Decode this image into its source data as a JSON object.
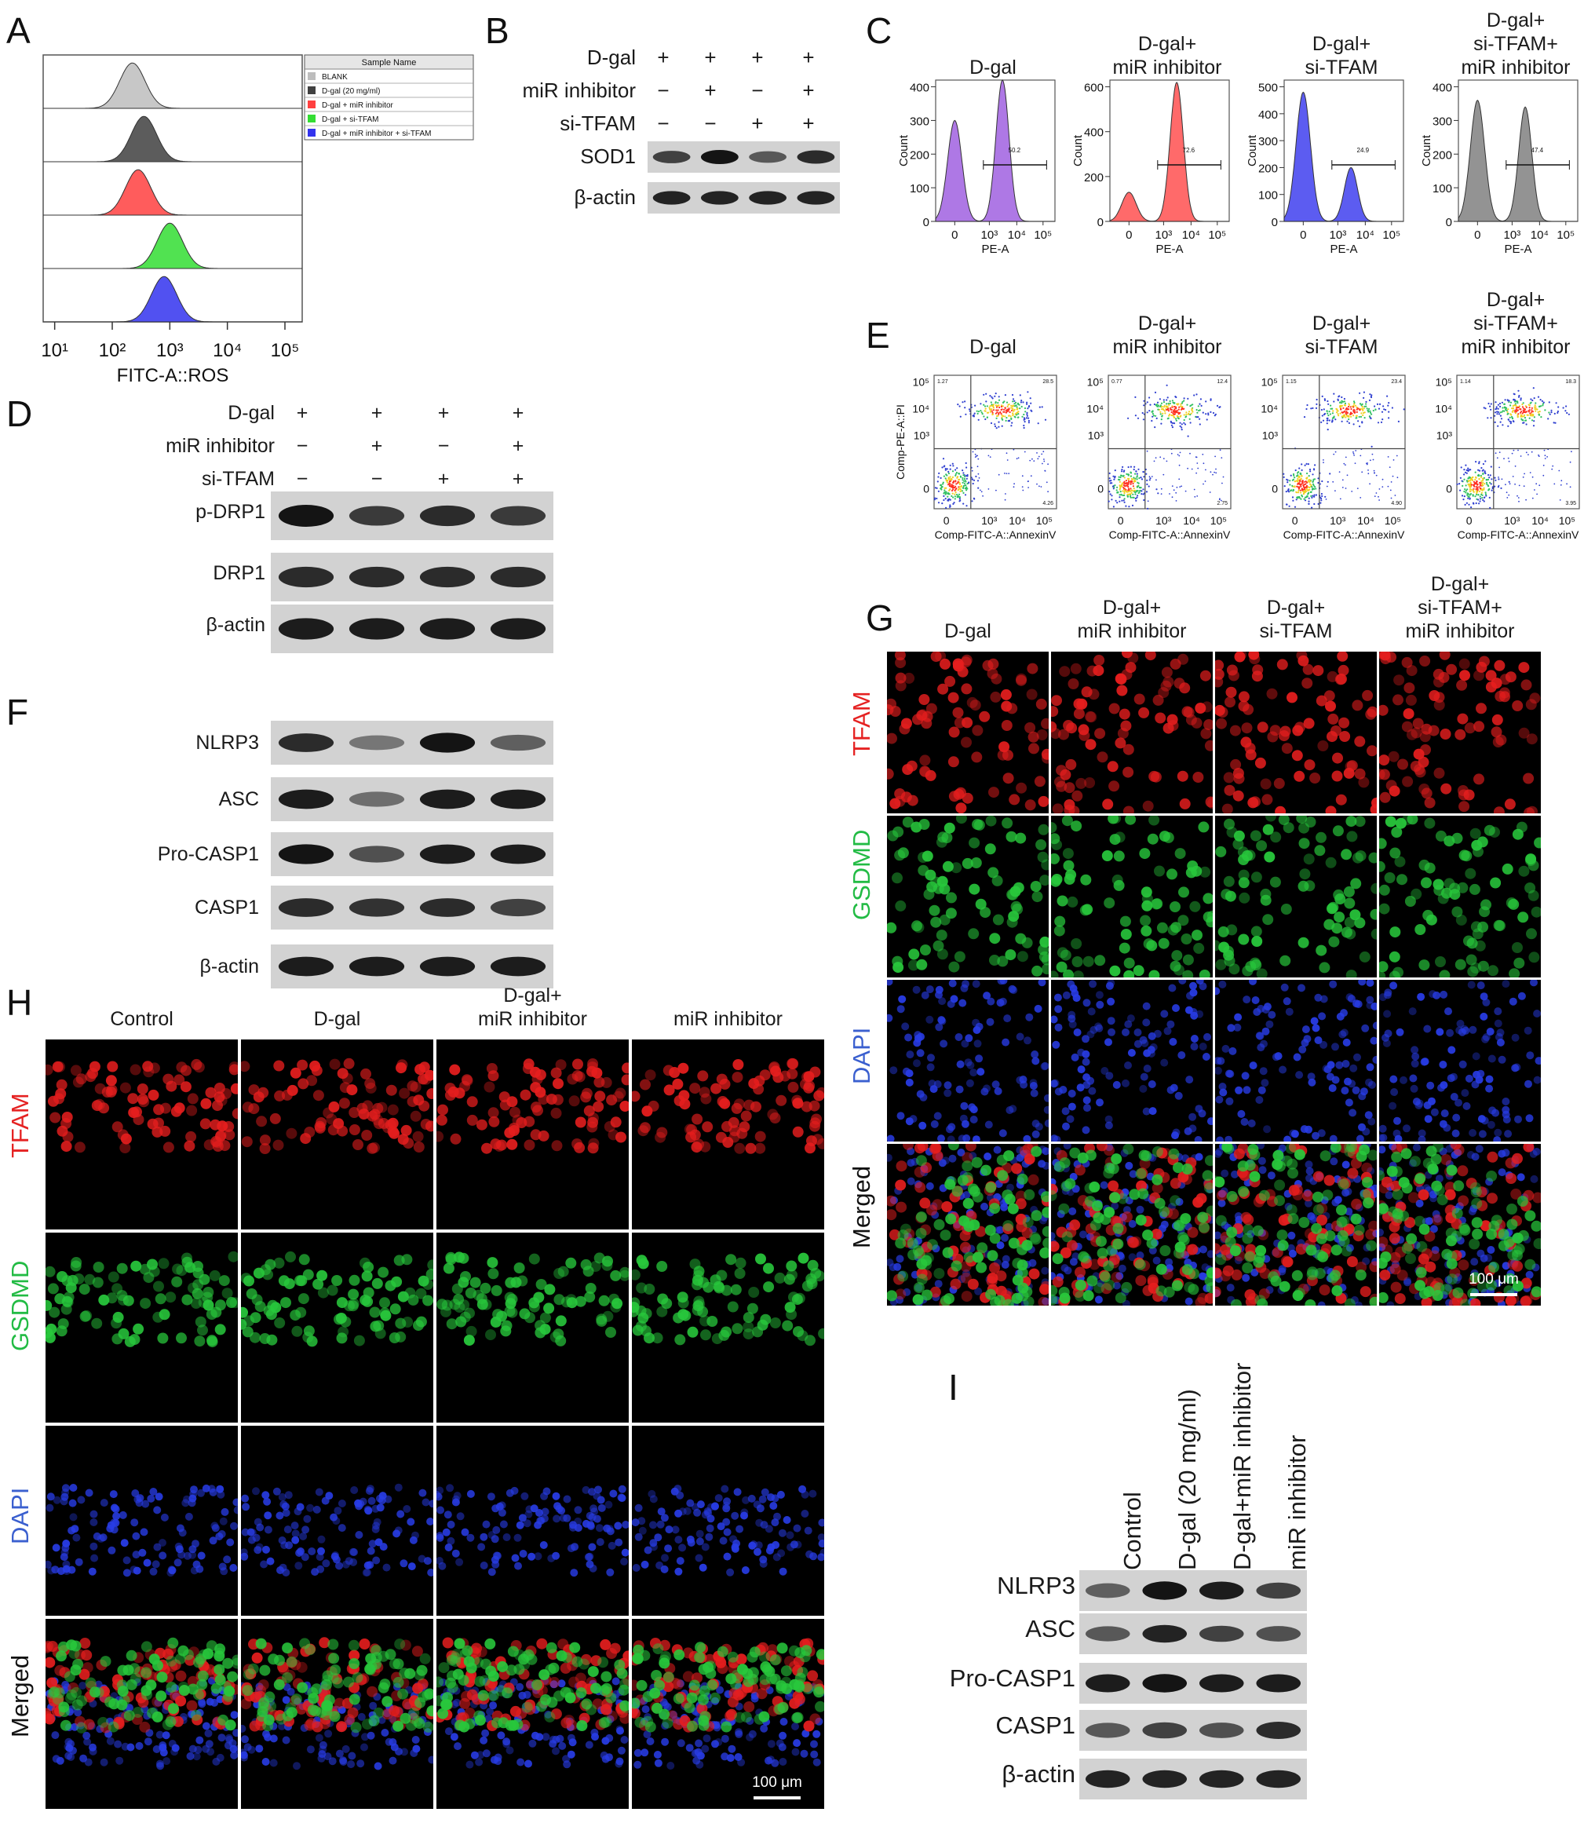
{
  "panels": {
    "A": {
      "label": "A",
      "legend_title": "Sample Name",
      "samples": [
        {
          "name": "BLANK",
          "color": "#bdbdbd",
          "peak_log": 2.35
        },
        {
          "name": "D-gal (20 mg/ml)",
          "color": "#404040",
          "peak_log": 2.55
        },
        {
          "name": "D-gal + miR inhibitor",
          "color": "#ff4040",
          "peak_log": 2.45
        },
        {
          "name": "D-gal + si-TFAM",
          "color": "#33dd33",
          "peak_log": 3.0
        },
        {
          "name": "D-gal + miR inhibitor + si-TFAM",
          "color": "#3333ee",
          "peak_log": 2.9
        }
      ],
      "xticks": [
        "10¹",
        "10²",
        "10³",
        "10⁴",
        "10⁵"
      ],
      "xlabel": "FITC-A::ROS"
    },
    "B": {
      "label": "B",
      "rows": [
        {
          "name": "D-gal",
          "signs": [
            "+",
            "+",
            "+",
            "+"
          ]
        },
        {
          "name": "miR inhibitor",
          "signs": [
            "−",
            "+",
            "−",
            "+"
          ]
        },
        {
          "name": "si-TFAM",
          "signs": [
            "−",
            "−",
            "+",
            "+"
          ]
        }
      ],
      "blots": [
        {
          "name": "SOD1",
          "intensity": [
            0.7,
            1.0,
            0.55,
            0.85
          ]
        },
        {
          "name": "β-actin",
          "intensity": [
            0.9,
            0.9,
            0.9,
            0.9
          ]
        }
      ]
    },
    "C": {
      "label": "C",
      "groups": [
        {
          "title": "D-gal",
          "color": "#a060e0",
          "yticks": [
            "0",
            "100",
            "200",
            "300",
            "400"
          ],
          "ymax": 420,
          "peak1": 300,
          "peak2": 420,
          "gate": "50.2"
        },
        {
          "title": "D-gal+\nmiR inhibitor",
          "color": "#ff5050",
          "yticks": [
            "0",
            "200",
            "400",
            "600"
          ],
          "ymax": 650,
          "peak1": 130,
          "peak2": 620,
          "gate": "72.6"
        },
        {
          "title": "D-gal+\nsi-TFAM",
          "color": "#4040ee",
          "yticks": [
            "0",
            "100",
            "200",
            "300",
            "400",
            "500"
          ],
          "ymax": 520,
          "peak1": 480,
          "peak2": 200,
          "gate": "24.9"
        },
        {
          "title": "D-gal+\nsi-TFAM+\nmiR inhibitor",
          "color": "#808080",
          "yticks": [
            "0",
            "100",
            "200",
            "300",
            "400"
          ],
          "ymax": 410,
          "peak1": 360,
          "peak2": 340,
          "gate": "47.4"
        }
      ],
      "ylabel": "Count",
      "xticks": [
        "0",
        "10³",
        "10⁴",
        "10⁵"
      ],
      "xlabel": "PE-A"
    },
    "D": {
      "label": "D",
      "rows": [
        {
          "name": "D-gal",
          "signs": [
            "+",
            "+",
            "+",
            "+"
          ]
        },
        {
          "name": "miR inhibitor",
          "signs": [
            "−",
            "+",
            "−",
            "+"
          ]
        },
        {
          "name": "si-TFAM",
          "signs": [
            "−",
            "−",
            "+",
            "+"
          ]
        }
      ],
      "blots": [
        {
          "name": "p-DRP1",
          "intensity": [
            1.0,
            0.75,
            0.85,
            0.75
          ]
        },
        {
          "name": "DRP1",
          "intensity": [
            0.85,
            0.85,
            0.85,
            0.85
          ]
        },
        {
          "name": "β-actin",
          "intensity": [
            0.95,
            0.95,
            0.95,
            0.95
          ]
        }
      ]
    },
    "E": {
      "label": "E",
      "groups": [
        {
          "title": "D-gal",
          "q": [
            "1.27",
            "28.5",
            "4.26"
          ]
        },
        {
          "title": "D-gal+\nmiR inhibitor",
          "q": [
            "0.77",
            "12.4",
            "2.75"
          ]
        },
        {
          "title": "D-gal+\nsi-TFAM",
          "q": [
            "1.15",
            "23.4",
            "4.90"
          ]
        },
        {
          "title": "D-gal+\nsi-TFAM+\nmiR inhibitor",
          "q": [
            "1.14",
            "18.3",
            "3.95"
          ]
        }
      ],
      "ylabel": "Comp-PE-A::PI",
      "xlabel": "Comp-FITC-A::AnnexinV",
      "yticks": [
        "0",
        "10³",
        "10⁴",
        "10⁵"
      ],
      "xticks": [
        "0",
        "10³",
        "10⁴",
        "10⁵"
      ]
    },
    "F": {
      "label": "F",
      "blots": [
        {
          "name": "NLRP3",
          "intensity": [
            0.85,
            0.35,
            1.0,
            0.5
          ]
        },
        {
          "name": "ASC",
          "intensity": [
            0.95,
            0.4,
            0.95,
            0.95
          ]
        },
        {
          "name": "Pro-CASP1",
          "intensity": [
            1.0,
            0.6,
            0.95,
            0.95
          ]
        },
        {
          "name": "CASP1",
          "intensity": [
            0.85,
            0.8,
            0.85,
            0.7
          ]
        },
        {
          "name": "β-actin",
          "intensity": [
            0.95,
            0.95,
            0.95,
            0.95
          ]
        }
      ]
    },
    "G": {
      "label": "G",
      "columns": [
        "D-gal",
        "D-gal+\nmiR inhibitor",
        "D-gal+\nsi-TFAM",
        "D-gal+\nsi-TFAM+\nmiR inhibitor"
      ],
      "rows": [
        {
          "name": "TFAM",
          "color": "#e52222"
        },
        {
          "name": "GSDMD",
          "color": "#22bb44"
        },
        {
          "name": "DAPI",
          "color": "#3a5fcf"
        },
        {
          "name": "Merged",
          "color": "#111111"
        }
      ],
      "scalebar": "100 μm"
    },
    "H": {
      "label": "H",
      "columns": [
        "Control",
        "D-gal",
        "D-gal+\nmiR inhibitor",
        "miR inhibitor"
      ],
      "rows": [
        {
          "name": "TFAM",
          "color": "#e52222"
        },
        {
          "name": "GSDMD",
          "color": "#22bb44"
        },
        {
          "name": "DAPI",
          "color": "#3a5fcf"
        },
        {
          "name": "Merged",
          "color": "#111111"
        }
      ],
      "scalebar": "100 μm"
    },
    "I": {
      "label": "I",
      "columns": [
        "Control",
        "D-gal (20 mg/ml)",
        "D-gal+miR inhibitor",
        "miR inhibitor"
      ],
      "blots": [
        {
          "name": "NLRP3",
          "intensity": [
            0.5,
            1.0,
            0.95,
            0.7
          ]
        },
        {
          "name": "ASC",
          "intensity": [
            0.55,
            0.9,
            0.7,
            0.6
          ]
        },
        {
          "name": "Pro-CASP1",
          "intensity": [
            0.95,
            1.0,
            0.95,
            0.95
          ]
        },
        {
          "name": "CASP1",
          "intensity": [
            0.55,
            0.7,
            0.6,
            0.85
          ]
        },
        {
          "name": "β-actin",
          "intensity": [
            0.9,
            0.9,
            0.9,
            0.9
          ]
        }
      ]
    }
  }
}
